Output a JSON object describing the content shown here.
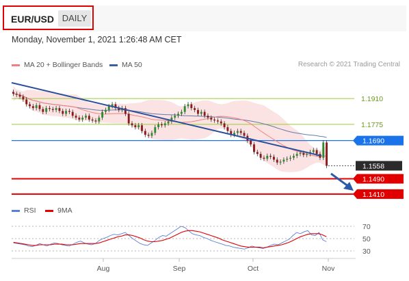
{
  "header": {
    "symbol": "EUR/USD",
    "timeframe": "DAILY",
    "timestamp": "Monday, November 1, 2021 1:26:48 AM CET"
  },
  "legend": {
    "ma20": {
      "label": "MA 20 + Bollinger Bands",
      "color": "#f08080"
    },
    "ma50": {
      "label": "MA 50",
      "color": "#3a5fa0"
    },
    "credit": "Research © 2021 Trading Central"
  },
  "chart_data": [
    {
      "type": "candlestick",
      "title": "",
      "x_axis": {
        "ticks": [
          "Aug",
          "Sep",
          "Oct",
          "Nov"
        ]
      },
      "price_levels": [
        {
          "label": "1.1910",
          "value": 1.191,
          "color": "#9acd32",
          "style": "resistance"
        },
        {
          "label": "1.1775",
          "value": 1.1775,
          "color": "#9acd32",
          "style": "resistance"
        },
        {
          "label": "1.1690",
          "value": 1.169,
          "color": "#1a73e8",
          "style": "pivot"
        },
        {
          "label": "1.1558",
          "value": 1.1558,
          "color": "#333333",
          "style": "last"
        },
        {
          "label": "1.1490",
          "value": 1.149,
          "color": "#e00000",
          "style": "support"
        },
        {
          "label": "1.1410",
          "value": 1.141,
          "color": "#e00000",
          "style": "support"
        }
      ],
      "ylim": [
        1.137,
        1.205
      ],
      "close": [
        1.1935,
        1.193,
        1.192,
        1.1905,
        1.188,
        1.187,
        1.186,
        1.1875,
        1.1855,
        1.184,
        1.186,
        1.1855,
        1.185,
        1.186,
        1.1845,
        1.183,
        1.1845,
        1.184,
        1.182,
        1.181,
        1.18,
        1.181,
        1.182,
        1.18,
        1.1795,
        1.179,
        1.181,
        1.184,
        1.185,
        1.187,
        1.188,
        1.186,
        1.185,
        1.186,
        1.183,
        1.178,
        1.177,
        1.176,
        1.177,
        1.174,
        1.172,
        1.1715,
        1.173,
        1.176,
        1.1775,
        1.177,
        1.178,
        1.179,
        1.181,
        1.182,
        1.183,
        1.184,
        1.187,
        1.188,
        1.186,
        1.185,
        1.183,
        1.184,
        1.182,
        1.181,
        1.18,
        1.1795,
        1.179,
        1.178,
        1.176,
        1.174,
        1.172,
        1.173,
        1.174,
        1.173,
        1.1715,
        1.169,
        1.167,
        1.163,
        1.162,
        1.16,
        1.1595,
        1.161,
        1.1605,
        1.159,
        1.1575,
        1.158,
        1.159,
        1.1595,
        1.16,
        1.161,
        1.162,
        1.1625,
        1.1615,
        1.162,
        1.163,
        1.164,
        1.162,
        1.16,
        1.168,
        1.1558
      ],
      "series": [
        {
          "name": "MA 20 + Bollinger Bands",
          "color": "#f08080"
        },
        {
          "name": "MA 50",
          "color": "#3a5fa0"
        }
      ],
      "trendline": {
        "color": "#2a4f9a"
      },
      "arrow": {
        "direction": "down",
        "color": "#2a5aa8"
      }
    },
    {
      "type": "line",
      "title": "",
      "series": [
        {
          "name": "RSI",
          "color": "#5b7fd6",
          "values": [
            43,
            42,
            41,
            40,
            38,
            37,
            39,
            42,
            40,
            38,
            41,
            43,
            42,
            40,
            39,
            38,
            41,
            44,
            46,
            43,
            41,
            40,
            42,
            47,
            50,
            52,
            55,
            57,
            56,
            58,
            60,
            55,
            50,
            46,
            42,
            40,
            39,
            43,
            47,
            52,
            55,
            54,
            58,
            62,
            66,
            70,
            68,
            63,
            58,
            56,
            55,
            52,
            50,
            47,
            45,
            43,
            41,
            39,
            38,
            36,
            35,
            34,
            33,
            35,
            38,
            36,
            35,
            34,
            36,
            39,
            41,
            40,
            43,
            46,
            49,
            55,
            60,
            58,
            61,
            63,
            56,
            55,
            60,
            48,
            45
          ]
        },
        {
          "name": "9MA",
          "color": "#e00000",
          "values": [
            44,
            43,
            42,
            41,
            40,
            39,
            39,
            40,
            40,
            40,
            40,
            41,
            41,
            41,
            40,
            40,
            40,
            41,
            42,
            42,
            42,
            42,
            42,
            43,
            45,
            47,
            49,
            51,
            53,
            54,
            56,
            56,
            55,
            53,
            51,
            48,
            46,
            45,
            45,
            46,
            47,
            49,
            51,
            54,
            57,
            60,
            62,
            63,
            63,
            62,
            61,
            59,
            57,
            55,
            53,
            51,
            48,
            46,
            44,
            42,
            40,
            38,
            37,
            36,
            36,
            36,
            36,
            35,
            36,
            37,
            38,
            39,
            40,
            42,
            44,
            47,
            50,
            53,
            55,
            57,
            58,
            58,
            58,
            56,
            53
          ]
        }
      ],
      "y_ticks": [
        70,
        50,
        30
      ],
      "ylim": [
        20,
        80
      ]
    }
  ]
}
